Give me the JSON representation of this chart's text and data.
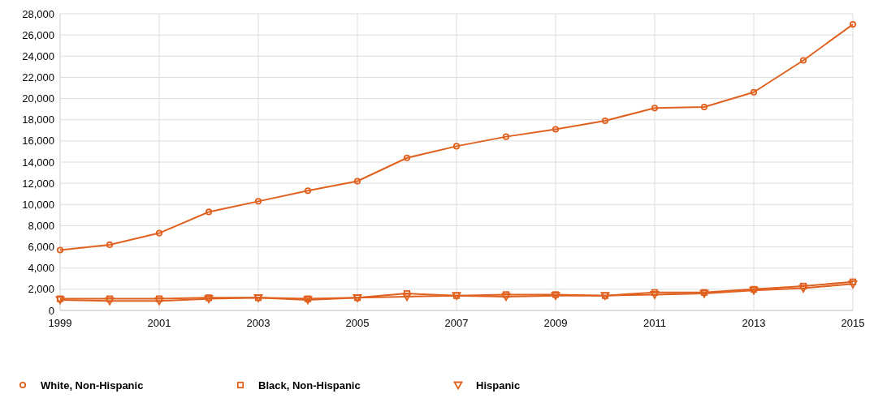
{
  "chart_data": {
    "type": "line",
    "x": [
      1999,
      2000,
      2001,
      2002,
      2003,
      2004,
      2005,
      2006,
      2007,
      2008,
      2009,
      2010,
      2011,
      2012,
      2013,
      2014,
      2015
    ],
    "xlim": [
      1999,
      2015
    ],
    "xticks": [
      1999,
      2001,
      2003,
      2005,
      2007,
      2009,
      2011,
      2013,
      2015
    ],
    "ylim": [
      0,
      28000
    ],
    "yticks": [
      {
        "value": 0,
        "label": "0"
      },
      {
        "value": 2000,
        "label": "2,000"
      },
      {
        "value": 4000,
        "label": "4,000"
      },
      {
        "value": 6000,
        "label": "6,000"
      },
      {
        "value": 8000,
        "label": "8,000"
      },
      {
        "value": 10000,
        "label": "10,000"
      },
      {
        "value": 12000,
        "label": "12,000"
      },
      {
        "value": 14000,
        "label": "14,000"
      },
      {
        "value": 16000,
        "label": "16,000"
      },
      {
        "value": 18000,
        "label": "18,000"
      },
      {
        "value": 20000,
        "label": "20,000"
      },
      {
        "value": 22000,
        "label": "22,000"
      },
      {
        "value": 24000,
        "label": "24,000"
      },
      {
        "value": 26000,
        "label": "26,000"
      },
      {
        "value": 28000,
        "label": "28,000"
      }
    ],
    "grid": true,
    "legend": "bottom",
    "line_style": "solid",
    "series": [
      {
        "name": "White, Non-Hispanic",
        "color": "#e0611f",
        "marker": "circle",
        "values": [
          5700,
          6200,
          7300,
          9300,
          10300,
          11300,
          12200,
          14400,
          15500,
          16400,
          17100,
          17900,
          19100,
          19200,
          20600,
          23600,
          27000
        ]
      },
      {
        "name": "Black, Non-Hispanic",
        "color": "#e0611f",
        "marker": "square",
        "values": [
          1100,
          1100,
          1100,
          1200,
          1200,
          1100,
          1200,
          1600,
          1400,
          1500,
          1500,
          1400,
          1700,
          1700,
          2000,
          2300,
          2700
        ]
      },
      {
        "name": "Hispanic",
        "color": "#e0611f",
        "marker": "triangle",
        "values": [
          1000,
          900,
          900,
          1100,
          1200,
          1000,
          1200,
          1300,
          1400,
          1300,
          1400,
          1400,
          1500,
          1600,
          1900,
          2100,
          2500
        ]
      }
    ]
  }
}
